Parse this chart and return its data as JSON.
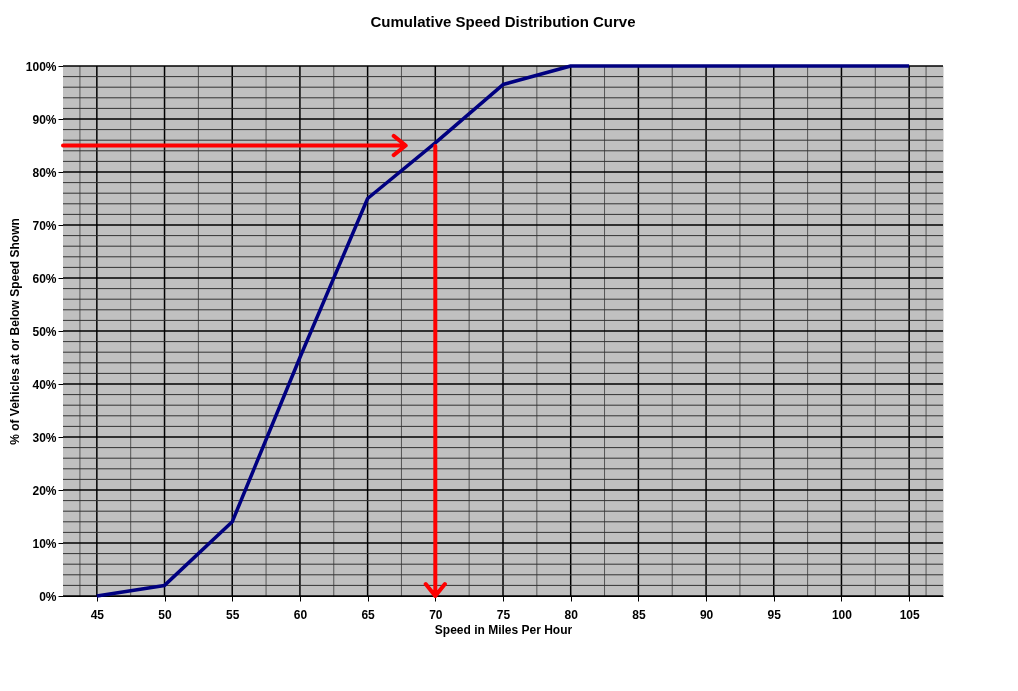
{
  "chart_data": {
    "type": "line",
    "title": "Cumulative Speed Distribution Curve",
    "xlabel": "Speed in Miles Per Hour",
    "ylabel": "% of Vehicles at or Below Speed Shown",
    "x": [
      45,
      50,
      55,
      60,
      65,
      70,
      75,
      80,
      85,
      90,
      95,
      100,
      105
    ],
    "series": [
      {
        "color": "#000080",
        "values": [
          0,
          2,
          14,
          45,
          75,
          85.5,
          96.5,
          100,
          100,
          100,
          100,
          100,
          100
        ]
      }
    ],
    "xlim": [
      42.5,
      107.5
    ],
    "xticks": [
      45,
      50,
      55,
      60,
      65,
      70,
      75,
      80,
      85,
      90,
      95,
      100,
      105
    ],
    "ylim": [
      0,
      100
    ],
    "yticks": [
      {
        "value": 0,
        "label": "0%"
      },
      {
        "value": 10,
        "label": "10%"
      },
      {
        "value": 20,
        "label": "20%"
      },
      {
        "value": 30,
        "label": "30%"
      },
      {
        "value": 40,
        "label": "40%"
      },
      {
        "value": 50,
        "label": "50%"
      },
      {
        "value": 60,
        "label": "60%"
      },
      {
        "value": 70,
        "label": "70%"
      },
      {
        "value": 80,
        "label": "80%"
      },
      {
        "value": 90,
        "label": "90%"
      },
      {
        "value": 100,
        "label": "100%"
      }
    ],
    "ref_lines": [
      {
        "axis": "y",
        "value": 85,
        "color": "#ff0000"
      },
      {
        "axis": "x",
        "value": 70,
        "color": "#ff0000"
      }
    ],
    "grid": true,
    "marker": "none",
    "line_style": "solid"
  }
}
